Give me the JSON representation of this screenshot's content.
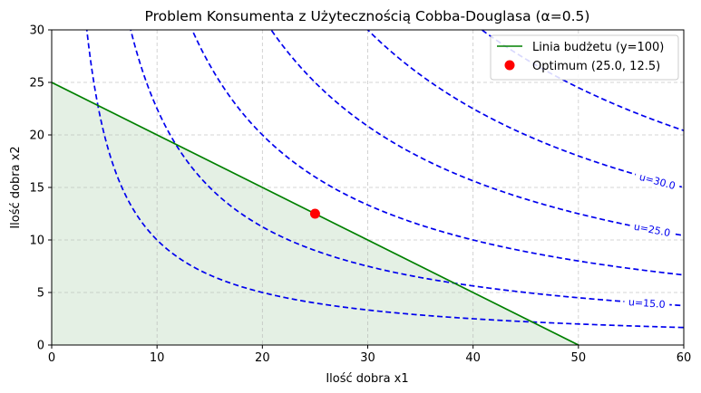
{
  "chart_data": {
    "type": "line",
    "title": "Problem Konsumenta z Użytecznością Cobba-Douglasa (α=0.5)",
    "xlabel": "Ilość dobra x1",
    "ylabel": "Ilość dobra x2",
    "xlim": [
      0,
      60
    ],
    "ylim": [
      0,
      30
    ],
    "xticks": [
      0,
      10,
      20,
      30,
      40,
      50,
      60
    ],
    "yticks": [
      0,
      5,
      10,
      15,
      20,
      25,
      30
    ],
    "grid": true,
    "legend_position": "top-right",
    "budget_line": {
      "name": "Linia budżetu (y=100)",
      "color": "#008000",
      "x": [
        0,
        50
      ],
      "y": [
        25,
        0
      ],
      "feasible_fill": "#e4f0e4"
    },
    "optimum": {
      "name": "Optimum (25.0, 12.5)",
      "x": 25.0,
      "y": 12.5,
      "color": "#ff0000"
    },
    "indifference_curves": {
      "color": "#0000ee",
      "style": "dashed",
      "levels": [
        10,
        15,
        20,
        25,
        30,
        35
      ],
      "labels": [
        {
          "text": "u=15.0",
          "x": 56.5,
          "y": 4.0
        },
        {
          "text": "u=25.0",
          "x": 57.0,
          "y": 11.0
        },
        {
          "text": "u=30.0",
          "x": 57.5,
          "y": 15.6
        }
      ]
    }
  }
}
